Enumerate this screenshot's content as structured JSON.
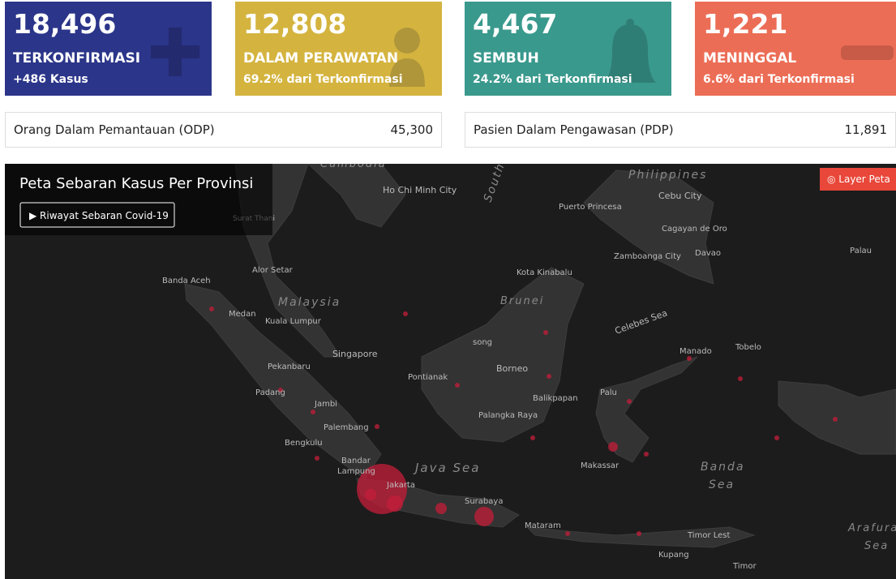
{
  "cards": [
    {
      "value": "18,496",
      "label": "TERKONFIRMASI",
      "sub": "+486 Kasus"
    },
    {
      "value": "12,808",
      "label": "DALAM PERAWATAN",
      "sub": "69.2% dari Terkonfirmasi"
    },
    {
      "value": "4,467",
      "label": "SEMBUH",
      "sub": "24.2% dari Terkonfirmasi"
    },
    {
      "value": "1,221",
      "label": "MENINGGAL",
      "sub": "6.6% dari Terkonfirmasi"
    }
  ],
  "info": [
    {
      "label": "Orang Dalam Pemantauan (ODP)",
      "value": "45,300"
    },
    {
      "label": "Pasien Dalam Pengawasan (PDP)",
      "value": "11,891"
    }
  ],
  "map": {
    "title": "Peta Sebaran Kasus Per Provinsi",
    "history_button": "▶ Riwayat Sebaran Covid-19",
    "layer_button": "◎ Layer Peta",
    "labels": [
      "Cambodia",
      "Ho Chi Minh City",
      "South",
      "Philippines",
      "Cebu City",
      "Puerto Princesa",
      "Cagayan de Oro",
      "Zamboanga City",
      "Davao",
      "Palau",
      "Surat Thani",
      "Alor Setar",
      "Kota Kinabalu",
      "Banda Aceh",
      "Malaysia",
      "Medan",
      "Kuala Lumpur",
      "Brunei",
      "Celebes Sea",
      "song",
      "Singapore",
      "Manado",
      "Tobelo",
      "Pekanbaru",
      "Borneo",
      "Pontianak",
      "Balikpapan",
      "Palu",
      "Padang",
      "Jambi",
      "Palembang",
      "Palangka Raya",
      "Bengkulu",
      "Bandar",
      "Lampung",
      "Java Sea",
      "Makassar",
      "Banda",
      "Sea",
      "Jakarta",
      "Surabaya",
      "Mataram",
      "Arafura",
      "Sea",
      "Timor Lest",
      "Kupang",
      "Timor"
    ]
  }
}
